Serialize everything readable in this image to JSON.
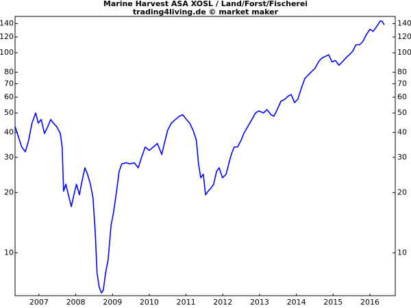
{
  "chart_data": {
    "type": "line",
    "title": "Marine Harvest ASA XOSL / Land/Forst/Fischerei",
    "subtitle": "trading4living.de © market maker",
    "x": [
      2006.85,
      2006.94,
      2007.03,
      2007.13,
      2007.22,
      2007.31,
      2007.41,
      2007.48,
      2007.56,
      2007.65,
      2007.74,
      2007.82,
      2007.89,
      2007.98,
      2008.08,
      2008.13,
      2008.17,
      2008.23,
      2008.3,
      2008.38,
      2008.45,
      2008.52,
      2008.6,
      2008.67,
      2008.75,
      2008.82,
      2008.9,
      2008.97,
      2009.03,
      2009.08,
      2009.14,
      2009.2,
      2009.25,
      2009.31,
      2009.38,
      2009.46,
      2009.53,
      2009.61,
      2009.68,
      2009.75,
      2009.87,
      2009.98,
      2010.09,
      2010.2,
      2010.29,
      2010.39,
      2010.5,
      2010.61,
      2010.72,
      2010.84,
      2010.91,
      2011.0,
      2011.1,
      2011.21,
      2011.32,
      2011.41,
      2011.51,
      2011.6,
      2011.69,
      2011.78,
      2011.84,
      2011.9,
      2011.97,
      2012.03,
      2012.1,
      2012.18,
      2012.25,
      2012.33,
      2012.4,
      2012.49,
      2012.59,
      2012.66,
      2012.73,
      2012.81,
      2012.9,
      2013.0,
      2013.07,
      2013.18,
      2013.29,
      2013.39,
      2013.48,
      2013.61,
      2013.7,
      2013.81,
      2013.89,
      2013.98,
      2014.08,
      2014.19,
      2014.28,
      2014.36,
      2014.45,
      2014.54,
      2014.63,
      2014.73,
      2014.82,
      2014.91,
      2015.01,
      2015.1,
      2015.19,
      2015.29,
      2015.38,
      2015.47,
      2015.56,
      2015.66,
      2015.75,
      2015.84,
      2015.94,
      2016.03,
      2016.12,
      2016.22,
      2016.31,
      2016.4,
      2016.5,
      2016.59,
      2016.68,
      2016.78,
      2016.83,
      2016.89
    ],
    "values": [
      42.8,
      38,
      33.8,
      32,
      36.6,
      44.5,
      50,
      44.5,
      46.4,
      39.5,
      42.8,
      46.4,
      44.5,
      42.8,
      39.5,
      33.8,
      20.3,
      22,
      19.5,
      17,
      19.5,
      22,
      19.5,
      22.8,
      26.6,
      24.7,
      22,
      18.8,
      12.7,
      7.9,
      6.7,
      6.3,
      6.5,
      7.9,
      9.2,
      13.7,
      16,
      20.3,
      25.5,
      27.8,
      28.2,
      27.8,
      28.2,
      26.6,
      30,
      33.8,
      32.5,
      33.8,
      35.2,
      31,
      35.2,
      41,
      44.5,
      46.4,
      48.2,
      49,
      46.4,
      44.5,
      41,
      36.6,
      27.8,
      23.7,
      24.7,
      19.5,
      20.3,
      21.1,
      22,
      25.5,
      26.6,
      23.7,
      24.7,
      27.8,
      31,
      33.8,
      33.8,
      36.6,
      39.5,
      42.8,
      46.4,
      50,
      51.2,
      50,
      52,
      49,
      48.2,
      52,
      57.2,
      58.6,
      60.8,
      61.8,
      56.4,
      58.6,
      66,
      74.3,
      77.4,
      80.4,
      83.7,
      90,
      94,
      96,
      97.8,
      90,
      91.6,
      86.7,
      90,
      94,
      97.8,
      101.6,
      109.6,
      109.6,
      114,
      123,
      131,
      128,
      135,
      144,
      144,
      138
    ],
    "color": "#0000ff",
    "log_scale": true,
    "xlim": [
      2006.85,
      2017.19
    ],
    "xticks": [
      {
        "value": 2007.5,
        "label": "2007"
      },
      {
        "value": 2008.5,
        "label": "2008"
      },
      {
        "value": 2009.5,
        "label": "2009"
      },
      {
        "value": 2010.5,
        "label": "2010"
      },
      {
        "value": 2011.5,
        "label": "2011"
      },
      {
        "value": 2012.5,
        "label": "2012"
      },
      {
        "value": 2013.5,
        "label": "2013"
      },
      {
        "value": 2014.5,
        "label": "2014"
      },
      {
        "value": 2015.5,
        "label": "2015"
      },
      {
        "value": 2016.5,
        "label": "2016"
      }
    ],
    "ylim": [
      6.1,
      152
    ],
    "yticks": [
      10,
      20,
      30,
      40,
      50,
      60,
      70,
      80,
      100,
      120,
      140
    ]
  }
}
